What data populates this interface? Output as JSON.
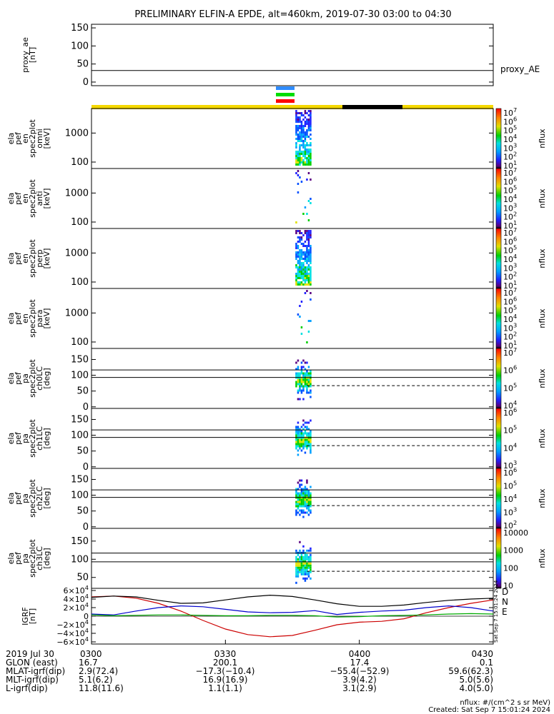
{
  "title": "PRELIMINARY ELFIN-A EPDE, alt=460km, 2019-07-30 03:00 to 04:30",
  "colors": {
    "bar_yellow": "#f5d800",
    "bar_black": "#000000",
    "marker_blue": "#2f8cff",
    "marker_green": "#00dd00",
    "marker_red": "#ff0000",
    "igrf_D": "#cc0000",
    "igrf_N": "#0000cc",
    "igrf_E": "#00aa00"
  },
  "panels": [
    {
      "id": "proxy_ae",
      "ylabel_lines": [
        "proxy_ae",
        "[nT]"
      ],
      "right_label": "proxy_AE",
      "yticks": [
        "150",
        "100",
        "50",
        "0"
      ]
    },
    {
      "id": "en_omni",
      "ylabel_lines": [
        "ela",
        "pef",
        "en",
        "spec2plot",
        "omni",
        "[keV]"
      ],
      "yticks": [
        "1000",
        "100"
      ],
      "cb_ticks": [
        "10^7",
        "10^6",
        "10^5",
        "10^4",
        "10^3",
        "10^2",
        "10^1"
      ],
      "cb_label": "nflux"
    },
    {
      "id": "en_anti",
      "ylabel_lines": [
        "ela",
        "pef",
        "en",
        "spec2plot",
        "anti",
        "[keV]"
      ],
      "yticks": [
        "1000",
        "100"
      ],
      "cb_ticks": [
        "10^7",
        "10^6",
        "10^5",
        "10^4",
        "10^3",
        "10^2",
        "10^1"
      ],
      "cb_label": "nflux"
    },
    {
      "id": "en_perp",
      "ylabel_lines": [
        "ela",
        "pef",
        "en",
        "spec2plot",
        "perp",
        "[keV]"
      ],
      "yticks": [
        "1000",
        "100"
      ],
      "cb_ticks": [
        "10^7",
        "10^6",
        "10^5",
        "10^4",
        "10^3",
        "10^2",
        "10^1"
      ],
      "cb_label": "nflux"
    },
    {
      "id": "en_para",
      "ylabel_lines": [
        "ela",
        "pef",
        "en",
        "spec2plot",
        "para",
        "[keV]"
      ],
      "yticks": [
        "1000",
        "100"
      ],
      "cb_ticks": [
        "10^7",
        "10^6",
        "10^5",
        "10^4",
        "10^3",
        "10^2",
        "10^1"
      ],
      "cb_label": "nflux"
    },
    {
      "id": "pa_ch0",
      "ylabel_lines": [
        "ela",
        "pef",
        "pa",
        "spec2plot",
        "ch0LC",
        "[deg]"
      ],
      "yticks": [
        "150",
        "100",
        "50",
        "0"
      ],
      "cb_ticks": [
        "10^7",
        "10^6",
        "10^5",
        "10^4"
      ],
      "cb_label": "nflux"
    },
    {
      "id": "pa_ch1",
      "ylabel_lines": [
        "ela",
        "pef",
        "pa",
        "spec2plot",
        "ch1LC",
        "[deg]"
      ],
      "yticks": [
        "150",
        "100",
        "50",
        "0"
      ],
      "cb_ticks": [
        "10^6",
        "10^5",
        "10^4",
        "10^3"
      ],
      "cb_label": "nflux"
    },
    {
      "id": "pa_ch2",
      "ylabel_lines": [
        "ela",
        "pef",
        "pa",
        "spec2plot",
        "ch2LC",
        "[deg]"
      ],
      "yticks": [
        "150",
        "100",
        "50",
        "0"
      ],
      "cb_ticks": [
        "10^6",
        "10^5",
        "10^4",
        "10^3",
        "10^2"
      ],
      "cb_label": "nflux"
    },
    {
      "id": "pa_ch3",
      "ylabel_lines": [
        "ela",
        "pef",
        "pa",
        "spec2plot",
        "ch3LC",
        "[deg]"
      ],
      "yticks": [
        "150",
        "100",
        "50"
      ],
      "cb_ticks": [
        "10000",
        "1000",
        "100",
        "10"
      ],
      "cb_label": "nflux"
    },
    {
      "id": "igrf",
      "ylabel_lines": [
        "IGRF",
        "[nT]"
      ],
      "yticks": [
        "6×10^4",
        "4×10^4",
        "2×10^4",
        "0",
        "−2×10^4",
        "−4×10^4",
        "−6×10^4"
      ],
      "legend": [
        "D",
        "N",
        "E"
      ]
    }
  ],
  "footer": {
    "rows": [
      {
        "label": "2019 Jul 30",
        "values": [
          "0300",
          "0330",
          "0400",
          "0430"
        ]
      },
      {
        "label": "GLON (east)",
        "values": [
          "16.7",
          "200.1",
          "17.4",
          "0.1"
        ]
      },
      {
        "label": "MLAT-igrf(dip)",
        "values": [
          "2.9(72.4)",
          "−17.3(−10.4)",
          "−55.4(−52.9)",
          "59.6(62.3)"
        ]
      },
      {
        "label": "MLT-igrf(dip)",
        "values": [
          "5.1(6.2)",
          "16.9(16.9)",
          "3.9(4.2)",
          "5.0(5.6)"
        ]
      },
      {
        "label": "L-igrf(dip)",
        "values": [
          "11.8(11.6)",
          "1.1(1.1)",
          "3.1(2.9)",
          "4.0(5.0)"
        ]
      }
    ],
    "units": "nflux: #/(cm^2 s sr MeV)",
    "created": "Created: Sat Sep  7 15:01:24 2024",
    "side_stamp": "Sat Sep  7 15:01:24 2024"
  },
  "chart_data": [
    {
      "type": "line",
      "title": "proxy_ae",
      "ylabel": "proxy_ae [nT]",
      "ylim": [
        -10,
        160
      ],
      "x": [
        "03:00",
        "04:30"
      ],
      "series": [
        {
          "name": "proxy_AE",
          "values": [
            32,
            32
          ]
        }
      ]
    },
    {
      "type": "heatmap",
      "title": "en omni",
      "ylabel": "[keV]",
      "yscale": "log",
      "ylim": [
        60,
        7000
      ],
      "x_active": [
        "03:46",
        "03:48"
      ],
      "clim": [
        10,
        10000000
      ]
    },
    {
      "type": "heatmap",
      "title": "en anti",
      "ylabel": "[keV]",
      "yscale": "log",
      "ylim": [
        60,
        7000
      ],
      "x_active": [
        "03:46",
        "03:48"
      ],
      "clim": [
        10,
        10000000
      ]
    },
    {
      "type": "heatmap",
      "title": "en perp",
      "ylabel": "[keV]",
      "yscale": "log",
      "ylim": [
        60,
        7000
      ],
      "x_active": [
        "03:46",
        "03:48"
      ],
      "clim": [
        10,
        10000000
      ]
    },
    {
      "type": "heatmap",
      "title": "en para",
      "ylabel": "[keV]",
      "yscale": "log",
      "ylim": [
        60,
        7000
      ],
      "x_active": [
        "03:46",
        "03:48"
      ],
      "clim": [
        10,
        10000000
      ]
    },
    {
      "type": "heatmap",
      "title": "pa ch0LC",
      "ylabel": "[deg]",
      "ylim": [
        -5,
        185
      ],
      "x_active": [
        "03:46",
        "03:48"
      ],
      "reference_lines": [
        117,
        93
      ],
      "dashed_line": 67,
      "clim": [
        10000,
        10000000
      ]
    },
    {
      "type": "heatmap",
      "title": "pa ch1LC",
      "ylabel": "[deg]",
      "ylim": [
        -5,
        185
      ],
      "x_active": [
        "03:46",
        "03:48"
      ],
      "reference_lines": [
        117,
        93
      ],
      "dashed_line": 67,
      "clim": [
        1000,
        1000000
      ]
    },
    {
      "type": "heatmap",
      "title": "pa ch2LC",
      "ylabel": "[deg]",
      "ylim": [
        -5,
        185
      ],
      "x_active": [
        "03:46",
        "03:48"
      ],
      "reference_lines": [
        117,
        93
      ],
      "dashed_line": 67,
      "clim": [
        100,
        1000000
      ]
    },
    {
      "type": "heatmap",
      "title": "pa ch3LC",
      "ylabel": "[deg]",
      "ylim": [
        20,
        185
      ],
      "x_active": [
        "03:46",
        "03:48"
      ],
      "reference_lines": [
        117,
        93
      ],
      "dashed_line": 67,
      "clim": [
        10,
        10000
      ]
    },
    {
      "type": "line",
      "title": "IGRF",
      "ylabel": "[nT]",
      "ylim": [
        -65000,
        65000
      ],
      "x": [
        0,
        5,
        10,
        15,
        20,
        25,
        30,
        35,
        40,
        45,
        50,
        55,
        60,
        65,
        70,
        75,
        80,
        85,
        90
      ],
      "x_unit": "minutes after 03:00",
      "series": [
        {
          "name": "D",
          "values": [
            45000,
            47000,
            42000,
            30000,
            12000,
            -10000,
            -30000,
            -43000,
            -48000,
            -45000,
            -33000,
            -20000,
            -14000,
            -12000,
            -6000,
            8000,
            20000,
            30000,
            38000
          ]
        },
        {
          "name": "N",
          "values": [
            5000,
            3000,
            12000,
            20000,
            24000,
            22000,
            16000,
            10000,
            8000,
            9000,
            13000,
            4000,
            9000,
            12000,
            14000,
            20000,
            24000,
            20000,
            12000
          ]
        },
        {
          "name": "E",
          "values": [
            3000,
            1000,
            2000,
            3000,
            3000,
            2000,
            1000,
            1000,
            2000,
            2000,
            1000,
            -2000,
            -1000,
            1000,
            2000,
            3000,
            5000,
            6000,
            5000
          ]
        },
        {
          "name": "total",
          "values": [
            44000,
            47000,
            45000,
            37000,
            30000,
            31000,
            38000,
            45000,
            49000,
            46000,
            38000,
            29000,
            23000,
            23000,
            26000,
            32000,
            37000,
            40000,
            42000
          ]
        }
      ]
    }
  ]
}
